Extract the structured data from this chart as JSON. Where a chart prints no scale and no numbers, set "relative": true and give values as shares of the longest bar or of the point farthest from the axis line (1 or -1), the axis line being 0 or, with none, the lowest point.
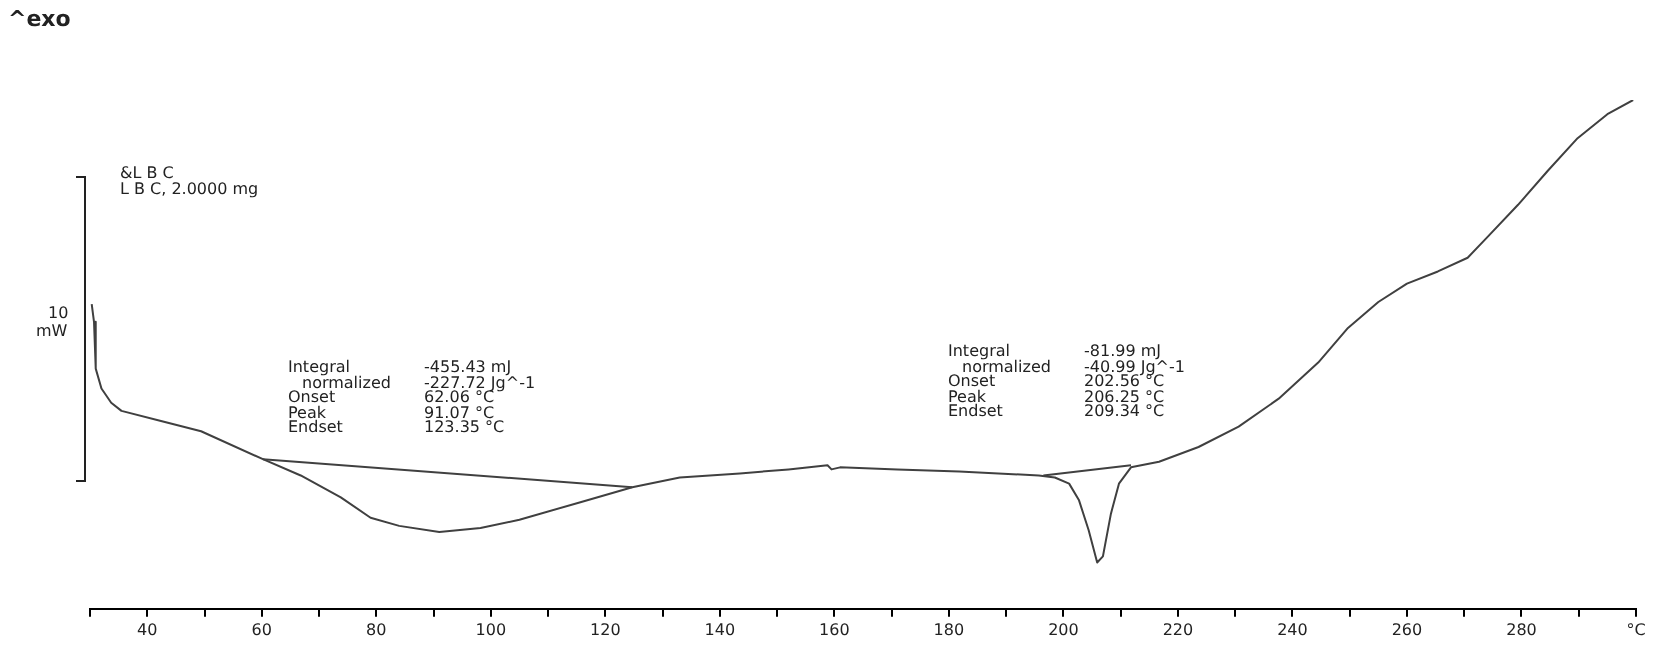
{
  "chart_data": {
    "type": "line",
    "relative": true,
    "legend": false,
    "grid": false,
    "marker": "none",
    "tick_labels": "x",
    "xlim": [
      30,
      300
    ],
    "xticks": [
      {
        "value": 30,
        "label": null
      },
      40,
      {
        "value": 50,
        "label": null
      },
      60,
      {
        "value": 70,
        "label": null
      },
      80,
      {
        "value": 90,
        "label": null
      },
      100,
      {
        "value": 110,
        "label": null
      },
      120,
      {
        "value": 130,
        "label": null
      },
      140,
      {
        "value": 150,
        "label": null
      },
      160,
      {
        "value": 170,
        "label": null
      },
      180,
      {
        "value": 190,
        "label": null
      },
      200,
      {
        "value": 210,
        "label": null
      },
      220,
      {
        "value": 230,
        "label": null
      },
      240,
      {
        "value": 250,
        "label": null
      },
      260,
      {
        "value": 270,
        "label": null
      },
      280,
      {
        "value": 290,
        "label": null
      },
      {
        "value": 300,
        "label": "°C"
      }
    ],
    "annotations": [
      "^exo",
      "&L B C",
      "L B C, 2.0000 mg",
      "10",
      "mW",
      "Integral",
      "-455.43 mJ",
      "normalized",
      "-227.72 Jg^-1",
      "Onset",
      "62.06 °C",
      "Peak",
      "91.07 °C",
      "Endset",
      "123.35 °C",
      "Integral",
      "-81.99 mJ",
      "normalized",
      "-40.99 Jg^-1",
      "Onset",
      "202.56 °C",
      "Peak",
      "206.25 °C",
      "Endset",
      "209.34 °C"
    ],
    "series": [
      {
        "color": "#404040",
        "x": [
          30.3,
          30.7,
          31,
          32,
          33.7,
          35.5,
          42.4,
          49.4,
          60.2,
          66.8,
          73.8,
          79,
          84,
          91,
          98.2,
          105,
          115.8,
          124.7,
          133,
          143.5,
          152,
          158.8,
          159.5,
          161,
          171,
          181.8,
          195.7,
          198.5,
          201,
          202.7,
          204.4,
          205.9,
          206.9,
          208.3,
          209.7,
          211.8,
          216.7,
          223.6,
          230.6,
          237.6,
          244.5,
          249.7,
          255,
          260,
          265.4,
          270.6,
          274,
          279.4,
          284.6,
          289.8,
          295,
          299.5
        ],
        "values": [
          0.599,
          0.564,
          0.472,
          0.433,
          0.405,
          0.389,
          0.369,
          0.349,
          0.294,
          0.262,
          0.219,
          0.179,
          0.163,
          0.151,
          0.159,
          0.175,
          0.21,
          0.239,
          0.258,
          0.266,
          0.274,
          0.282,
          0.274,
          0.278,
          0.274,
          0.27,
          0.262,
          0.258,
          0.246,
          0.214,
          0.155,
          0.091,
          0.103,
          0.187,
          0.246,
          0.278,
          0.289,
          0.318,
          0.358,
          0.413,
          0.484,
          0.552,
          0.603,
          0.639,
          0.663,
          0.69,
          0.73,
          0.794,
          0.861,
          0.925,
          0.972,
          1
        ]
      },
      {
        "color": "#404040",
        "x": [
          60.2,
          124.7
        ],
        "values": [
          0.294,
          0.239
        ]
      },
      {
        "color": "#404040",
        "x": [
          196.5,
          211.8
        ],
        "values": [
          0.262,
          0.282
        ]
      }
    ]
  }
}
